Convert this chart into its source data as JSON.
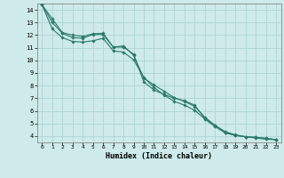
{
  "xlabel": "Humidex (Indice chaleur)",
  "background_color": "#ceeaea",
  "grid_color": "#add4d4",
  "line_color": "#2a7a6a",
  "xlim": [
    -0.5,
    23.5
  ],
  "ylim": [
    3.5,
    14.5
  ],
  "xticks": [
    0,
    1,
    2,
    3,
    4,
    5,
    6,
    7,
    8,
    9,
    10,
    11,
    12,
    13,
    14,
    15,
    16,
    17,
    18,
    19,
    20,
    21,
    22,
    23
  ],
  "yticks": [
    4,
    5,
    6,
    7,
    8,
    9,
    10,
    11,
    12,
    13,
    14
  ],
  "line1_x": [
    0,
    1,
    2,
    3,
    4,
    5,
    6,
    7,
    8,
    9,
    10,
    11,
    12,
    13,
    14,
    15,
    16,
    17,
    18,
    19,
    20,
    21,
    22,
    23
  ],
  "line1_y": [
    14.4,
    13.3,
    12.2,
    12.0,
    11.9,
    12.1,
    12.15,
    11.05,
    11.05,
    10.5,
    8.3,
    7.65,
    7.3,
    7.0,
    6.8,
    6.45,
    5.4,
    4.85,
    4.3,
    4.05,
    3.95,
    3.9,
    3.82,
    3.72
  ],
  "line2_x": [
    0,
    1,
    2,
    3,
    4,
    5,
    6,
    7,
    8,
    9,
    10,
    11,
    12,
    13,
    14,
    15,
    16,
    17,
    18,
    19,
    20,
    21,
    22,
    23
  ],
  "line2_y": [
    14.4,
    13.0,
    12.15,
    11.8,
    11.75,
    12.05,
    12.05,
    11.05,
    11.15,
    10.4,
    8.6,
    8.05,
    7.55,
    7.05,
    6.75,
    6.35,
    5.5,
    4.85,
    4.35,
    4.1,
    3.95,
    3.9,
    3.82,
    3.72
  ],
  "line3_x": [
    0,
    1,
    2,
    3,
    4,
    5,
    6,
    7,
    8,
    9,
    10,
    11,
    12,
    13,
    14,
    15,
    16,
    17,
    18,
    19,
    20,
    21,
    22,
    23
  ],
  "line3_y": [
    14.4,
    12.5,
    11.8,
    11.5,
    11.45,
    11.55,
    11.75,
    10.75,
    10.65,
    10.05,
    8.65,
    7.85,
    7.25,
    6.75,
    6.45,
    6.05,
    5.35,
    4.75,
    4.25,
    4.05,
    3.95,
    3.85,
    3.75,
    3.72
  ]
}
